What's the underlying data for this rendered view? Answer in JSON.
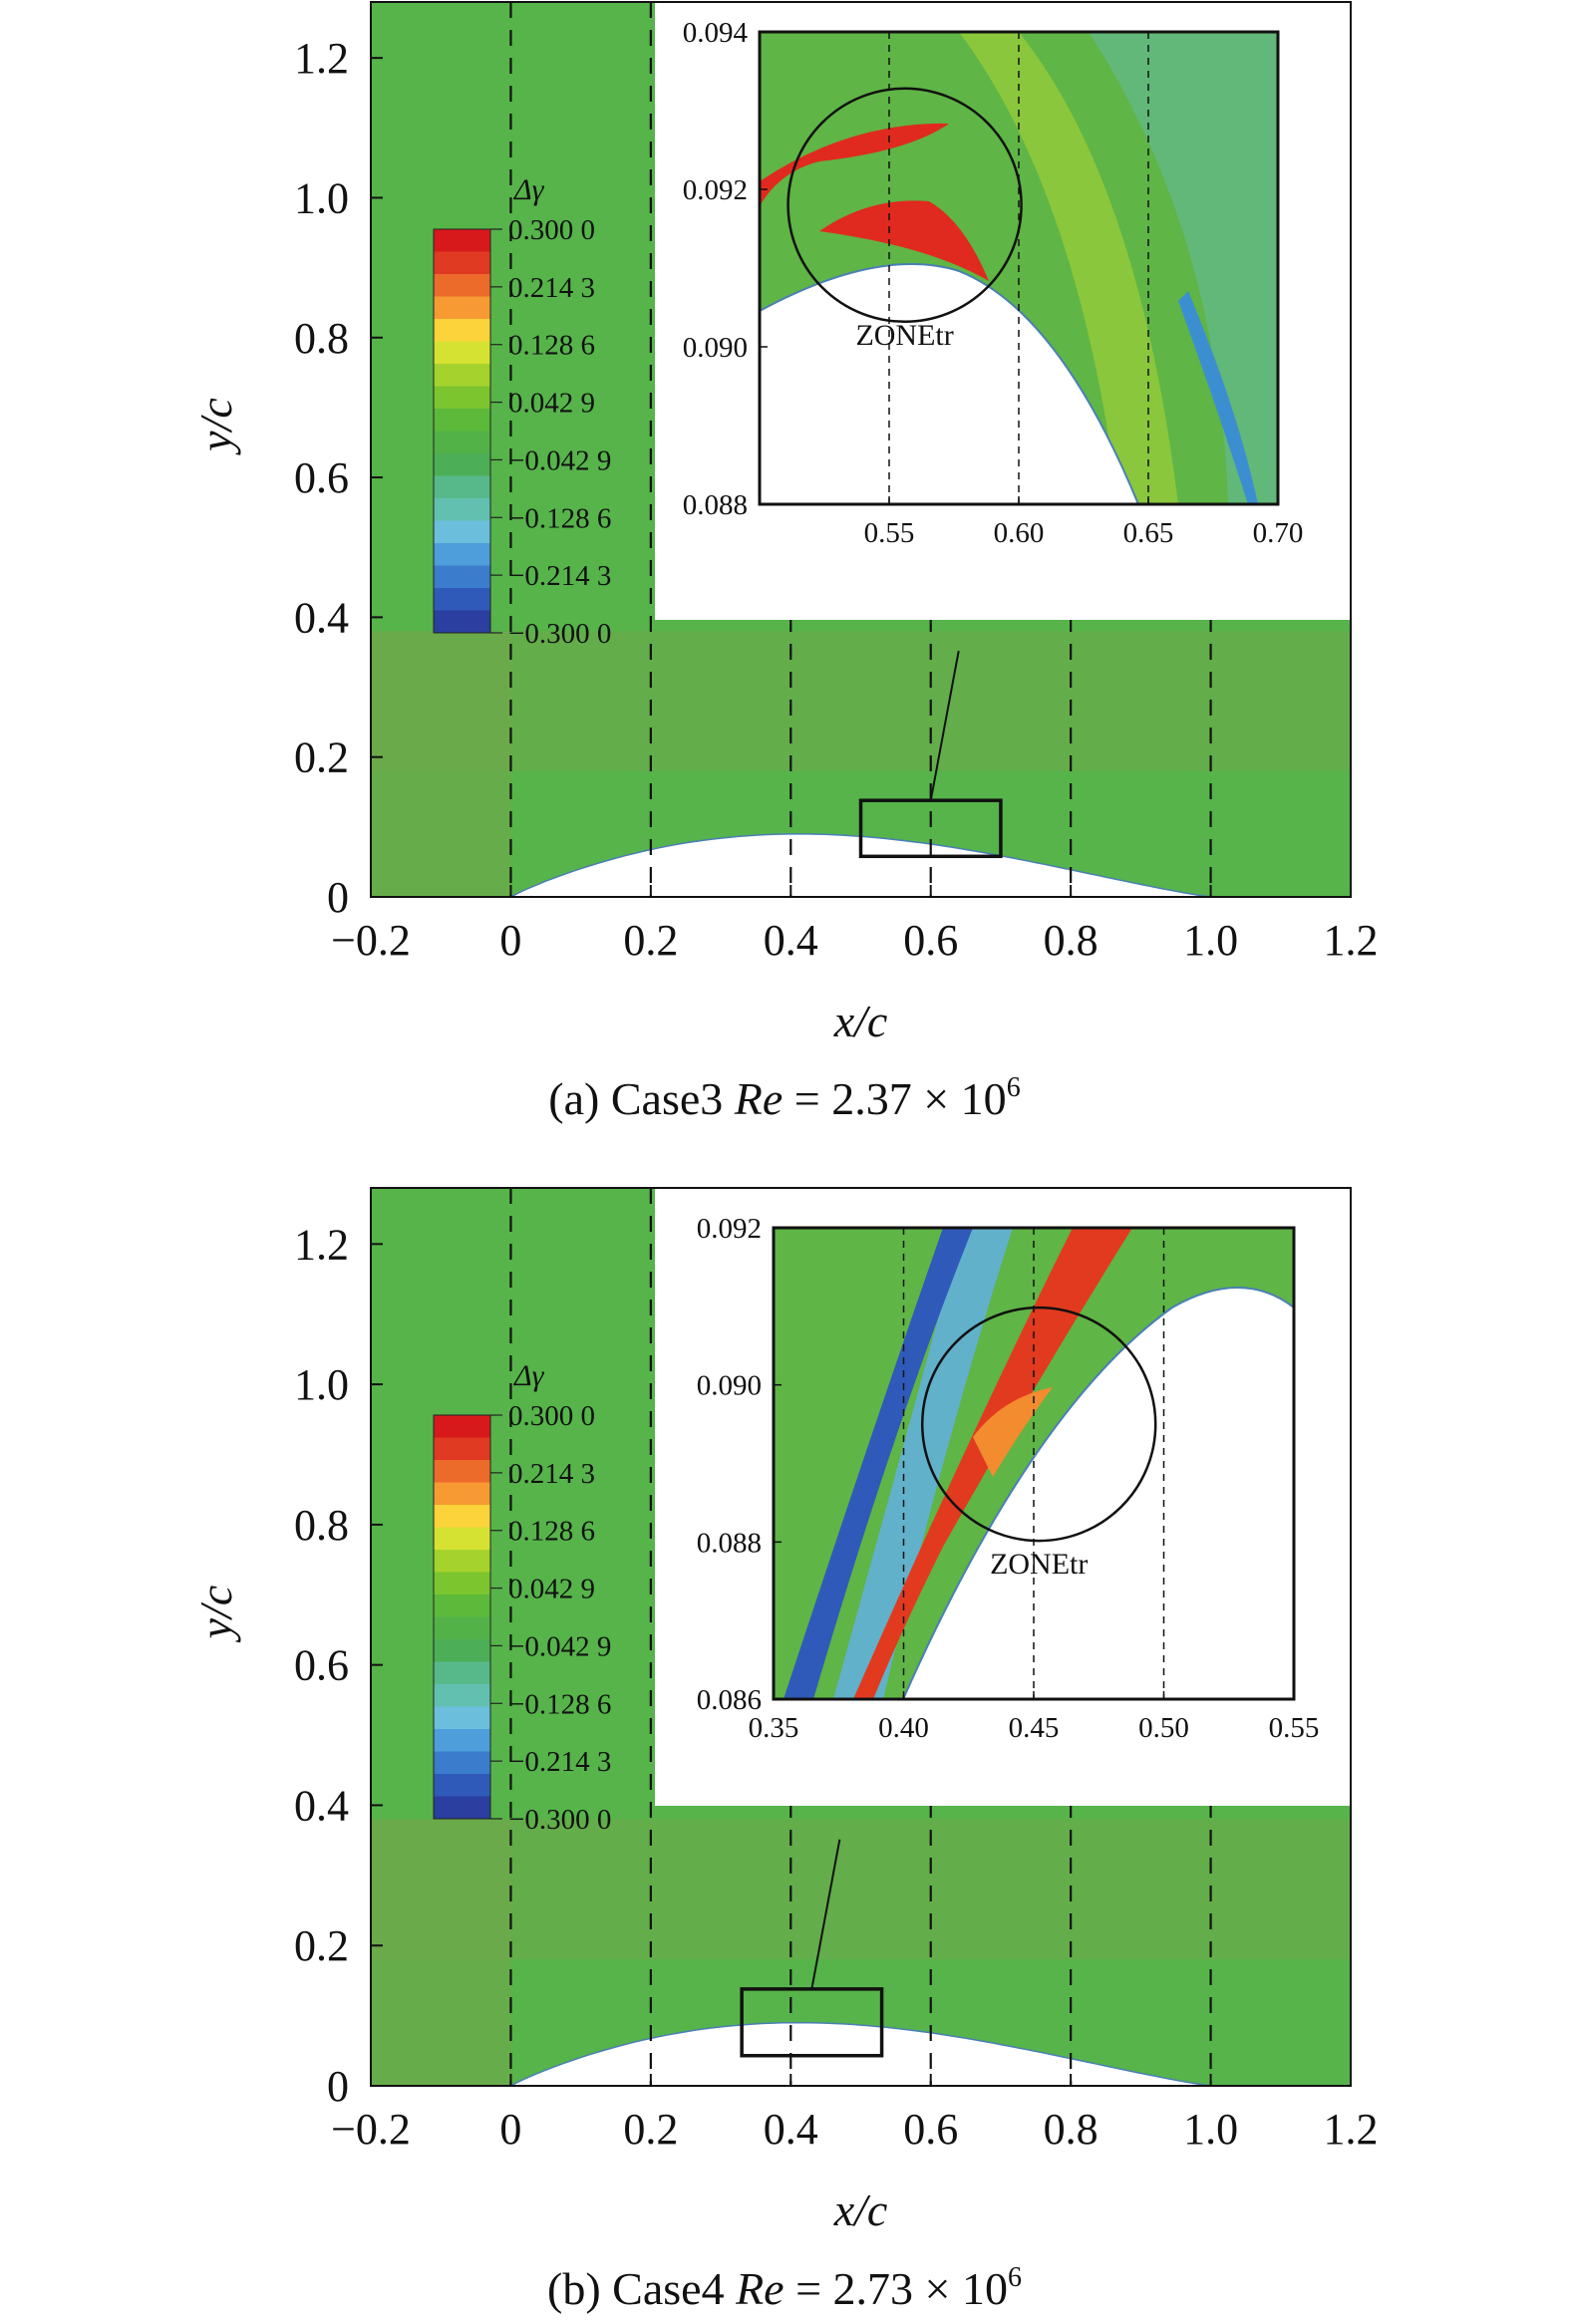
{
  "chart_data": [
    {
      "type": "heatmap",
      "caption": {
        "prefix": "(a) Case3 ",
        "re_symbol": "Re",
        "eq": " = 2.37 × 10",
        "exp": "6"
      },
      "xlabel": "x/c",
      "ylabel": "y/c",
      "xlim": [
        -0.2,
        1.2
      ],
      "ylim": [
        0,
        1.28
      ],
      "xticks": [
        "−0.2",
        "0",
        "0.2",
        "0.4",
        "0.6",
        "0.8",
        "1.0",
        "1.2"
      ],
      "xtick_values": [
        -0.2,
        0,
        0.2,
        0.4,
        0.6,
        0.8,
        1.0,
        1.2
      ],
      "yticks": [
        "0",
        "0.2",
        "0.4",
        "0.6",
        "0.8",
        "1.0",
        "1.2"
      ],
      "ytick_values": [
        0,
        0.2,
        0.4,
        0.6,
        0.8,
        1.0,
        1.2
      ],
      "dashed_x": [
        0,
        0.2,
        0.4,
        0.6,
        0.8,
        1.0
      ],
      "zoom_box": {
        "x": [
          0.5,
          0.7
        ],
        "y": [
          0.058,
          0.138
        ]
      },
      "colorbar": {
        "title": "Δγ",
        "labels": [
          "0.300 0",
          "0.214 3",
          "0.128 6",
          "0.042 9",
          "−0.042 9",
          "−0.128 6",
          "−0.214 3",
          "−0.300 0"
        ],
        "values": [
          0.3,
          0.2143,
          0.1286,
          0.0429,
          -0.0429,
          -0.1286,
          -0.2143,
          -0.3
        ],
        "colors": [
          "#d7191c",
          "#e03a22",
          "#ec6a2a",
          "#f89a33",
          "#fdd33b",
          "#d6e232",
          "#a5d22d",
          "#7cc52f",
          "#5cb93a",
          "#52b248",
          "#4cae57",
          "#57b98a",
          "#62c0b1",
          "#6bbfdc",
          "#4d9edb",
          "#3b7ccd",
          "#2f5aba",
          "#2a3f9f"
        ]
      },
      "inset": {
        "xlim": [
          0.5,
          0.7
        ],
        "ylim": [
          0.088,
          0.094
        ],
        "xticks": [
          "0.55",
          "0.60",
          "0.65",
          "0.70"
        ],
        "xtick_values": [
          0.55,
          0.6,
          0.65,
          0.7
        ],
        "yticks": [
          "0.088",
          "0.090",
          "0.092",
          "0.094"
        ],
        "ytick_values": [
          0.088,
          0.09,
          0.092,
          0.094
        ],
        "dashed_x": [
          0.55,
          0.6,
          0.65
        ],
        "zone_label": "ZONEtr",
        "zone_center": [
          0.556,
          0.0918
        ]
      }
    },
    {
      "type": "heatmap",
      "caption": {
        "prefix": "(b) Case4 ",
        "re_symbol": "Re",
        "eq": " = 2.73 × 10",
        "exp": "6"
      },
      "xlabel": "x/c",
      "ylabel": "y/c",
      "xlim": [
        -0.2,
        1.2
      ],
      "ylim": [
        0,
        1.28
      ],
      "xticks": [
        "−0.2",
        "0",
        "0.2",
        "0.4",
        "0.6",
        "0.8",
        "1.0",
        "1.2"
      ],
      "xtick_values": [
        -0.2,
        0,
        0.2,
        0.4,
        0.6,
        0.8,
        1.0,
        1.2
      ],
      "yticks": [
        "0",
        "0.2",
        "0.4",
        "0.6",
        "0.8",
        "1.0",
        "1.2"
      ],
      "ytick_values": [
        0,
        0.2,
        0.4,
        0.6,
        0.8,
        1.0,
        1.2
      ],
      "dashed_x": [
        0,
        0.2,
        0.4,
        0.6,
        0.8,
        1.0
      ],
      "zoom_box": {
        "x": [
          0.33,
          0.53
        ],
        "y": [
          0.043,
          0.138
        ]
      },
      "colorbar": {
        "title": "Δγ",
        "labels": [
          "0.300 0",
          "0.214 3",
          "0.128 6",
          "0.042 9",
          "−0.042 9",
          "−0.128 6",
          "−0.214 3",
          "−0.300 0"
        ],
        "values": [
          0.3,
          0.2143,
          0.1286,
          0.0429,
          -0.0429,
          -0.1286,
          -0.2143,
          -0.3
        ],
        "colors": [
          "#d7191c",
          "#e03a22",
          "#ec6a2a",
          "#f89a33",
          "#fdd33b",
          "#d6e232",
          "#a5d22d",
          "#7cc52f",
          "#5cb93a",
          "#52b248",
          "#4cae57",
          "#57b98a",
          "#62c0b1",
          "#6bbfdc",
          "#4d9edb",
          "#3b7ccd",
          "#2f5aba",
          "#2a3f9f"
        ]
      },
      "inset": {
        "xlim": [
          0.35,
          0.55
        ],
        "ylim": [
          0.086,
          0.092
        ],
        "xticks": [
          "0.35",
          "0.40",
          "0.45",
          "0.50",
          "0.55"
        ],
        "xtick_values": [
          0.35,
          0.4,
          0.45,
          0.5,
          0.55
        ],
        "yticks": [
          "0.086",
          "0.088",
          "0.090",
          "0.092"
        ],
        "ytick_values": [
          0.086,
          0.088,
          0.09,
          0.092
        ],
        "dashed_x": [
          0.4,
          0.45,
          0.5
        ],
        "zone_label": "ZONEtr",
        "zone_center": [
          0.452,
          0.0895
        ]
      }
    }
  ]
}
